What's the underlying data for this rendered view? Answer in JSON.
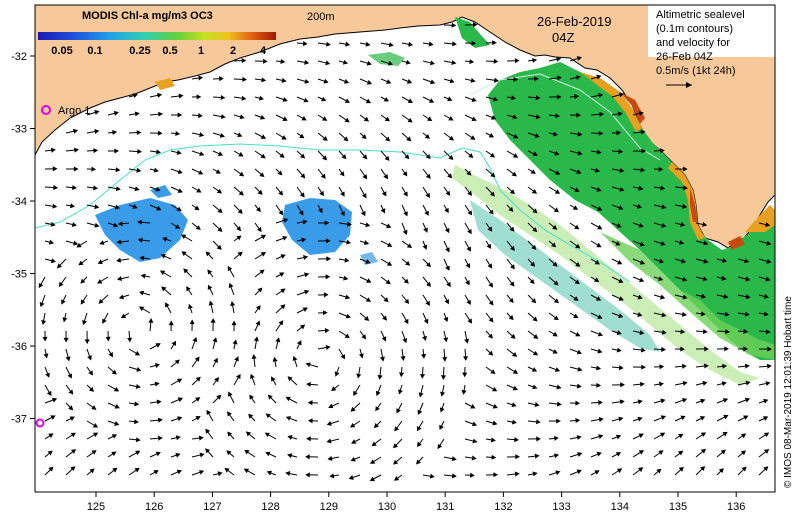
{
  "map": {
    "title": "MODIS Chl-a mg/m3 OC3",
    "colorbar_ticks": [
      "0.05",
      "0.1",
      "0.25",
      "0.5",
      "1",
      "2",
      "4"
    ],
    "contour_label": "200m",
    "date": "26-Feb-2019",
    "time": "04Z",
    "legend_lines": [
      "Altimetric sealevel",
      "(0.1m contours)",
      "and velocity for",
      "26-Feb 04Z",
      "0.5m/s (1kt 24h)"
    ],
    "argo_label": "Argo 1",
    "credit": "© IMOS 08-Mar-2019 12:01:39 Hobart time",
    "lon_ticks": [
      "125",
      "126",
      "127",
      "128",
      "129",
      "130",
      "131",
      "132",
      "133",
      "134",
      "135",
      "136"
    ],
    "lat_ticks": [
      "-32",
      "-33",
      "-34",
      "-35",
      "-36",
      "-37"
    ],
    "colors": {
      "land": "#f7c89a",
      "ocean": "#ffffff",
      "contour": "#40e0d0",
      "argo": "#e000e0",
      "chl_high": "#2ab84a",
      "chl_low": "#3a9be8",
      "chl_coast": "#c84a10"
    }
  }
}
